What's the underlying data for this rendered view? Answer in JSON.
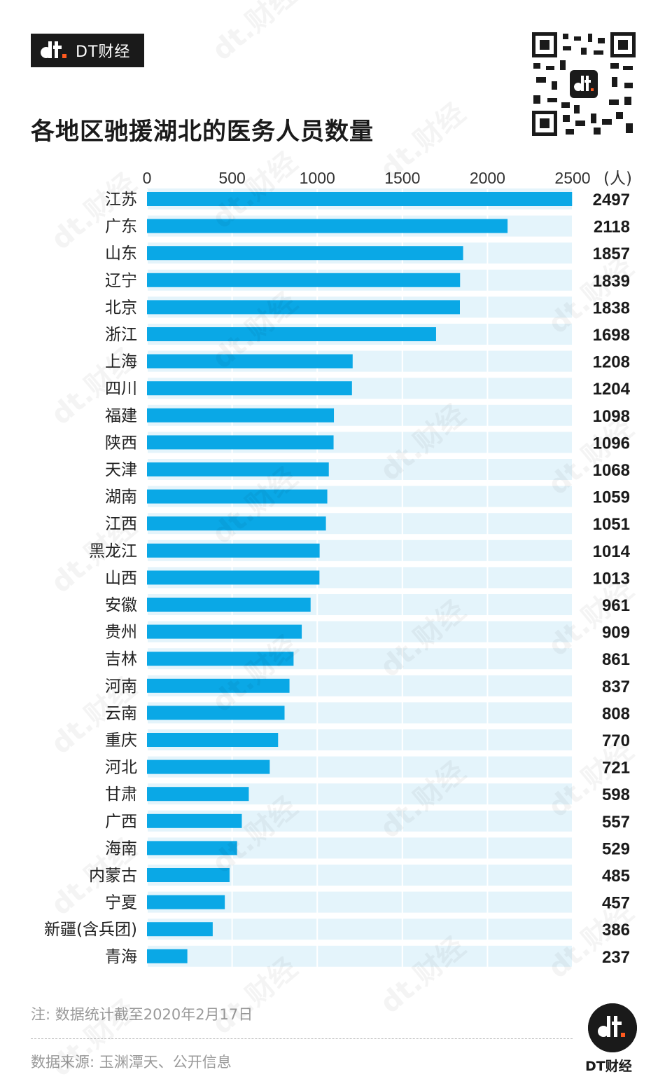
{
  "brand": {
    "name": "DT财经"
  },
  "watermark_text": "dt.财经",
  "chart_data": {
    "type": "bar",
    "orientation": "horizontal",
    "title": "各地区驰援湖北的医务人员数量",
    "unit": "(人)",
    "xlim": [
      0,
      2500
    ],
    "ticks": [
      0,
      500,
      1000,
      1500,
      2000,
      2500
    ],
    "categories": [
      "江苏",
      "广东",
      "山东",
      "辽宁",
      "北京",
      "浙江",
      "上海",
      "四川",
      "福建",
      "陕西",
      "天津",
      "湖南",
      "江西",
      "黑龙江",
      "山西",
      "安徽",
      "贵州",
      "吉林",
      "河南",
      "云南",
      "重庆",
      "河北",
      "甘肃",
      "广西",
      "海南",
      "内蒙古",
      "宁夏",
      "新疆(含兵团)",
      "青海"
    ],
    "values": [
      2497,
      2118,
      1857,
      1839,
      1838,
      1698,
      1208,
      1204,
      1098,
      1096,
      1068,
      1059,
      1051,
      1014,
      1013,
      961,
      909,
      861,
      837,
      808,
      770,
      721,
      598,
      557,
      529,
      485,
      457,
      386,
      237
    ],
    "bar_color": "#0aa8e6",
    "track_color": "#e4f4fb",
    "grid": true,
    "legend": "none"
  },
  "note": "注: 数据统计截至2020年2月17日",
  "source": "数据来源: 玉渊潭天、公开信息",
  "footer_brand": "DT财经"
}
